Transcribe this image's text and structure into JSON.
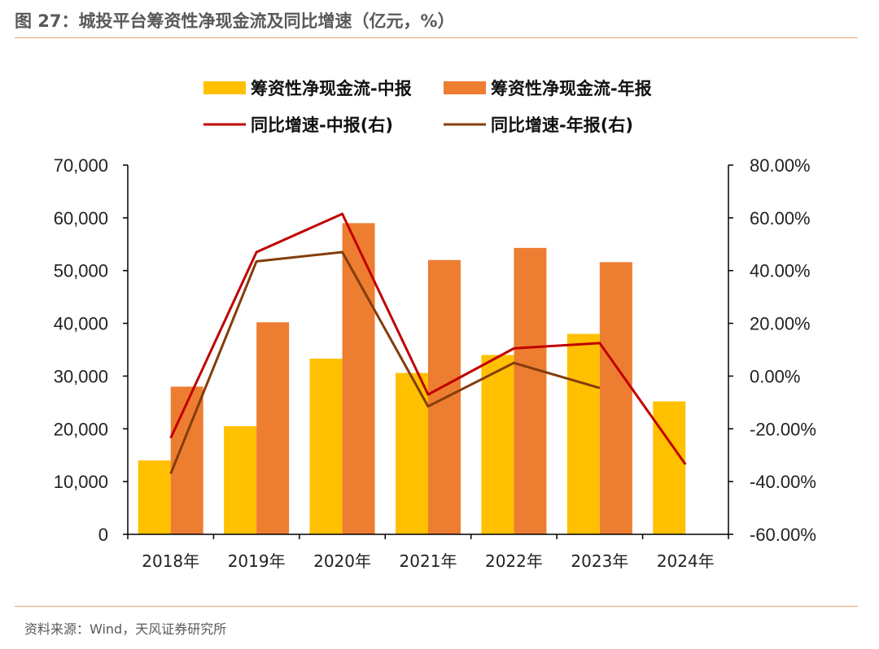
{
  "figure": {
    "title": "图 27：城投平台筹资性净现金流及同比增速（亿元，%）",
    "source": "资料来源：Wind，天风证券研究所"
  },
  "colors": {
    "bar_mid": "#ffc000",
    "bar_annual": "#ed7d31",
    "line_mid": "#c00000",
    "line_annual": "#843c0c",
    "rule": "#f0a46a"
  },
  "chart_data": {
    "type": "bar",
    "categories": [
      "2018年",
      "2019年",
      "2020年",
      "2021年",
      "2022年",
      "2023年",
      "2024年"
    ],
    "series": [
      {
        "name": "筹资性净现金流-中报",
        "type": "bar",
        "axis": "left",
        "values": [
          14000,
          20500,
          33300,
          30600,
          34000,
          38000,
          25200
        ]
      },
      {
        "name": "筹资性净现金流-年报",
        "type": "bar",
        "axis": "left",
        "values": [
          28000,
          40200,
          59000,
          52000,
          54300,
          51600,
          null
        ]
      },
      {
        "name": "同比增速-中报(右)",
        "type": "line",
        "axis": "right",
        "values": [
          -23.5,
          47.0,
          61.5,
          -7.0,
          10.5,
          12.5,
          -33.5
        ]
      },
      {
        "name": "同比增速-年报(右)",
        "type": "line",
        "axis": "right",
        "values": [
          -37.0,
          43.5,
          47.0,
          -11.5,
          5.0,
          -4.5,
          null
        ]
      }
    ],
    "left_axis": {
      "min": 0,
      "max": 70000,
      "step": 10000,
      "tick_labels": [
        "0",
        "10,000",
        "20,000",
        "30,000",
        "40,000",
        "50,000",
        "60,000",
        "70,000"
      ]
    },
    "right_axis": {
      "min": -60,
      "max": 80,
      "step": 20,
      "tick_labels": [
        "-60.00%",
        "-40.00%",
        "-20.00%",
        "0.00%",
        "20.00%",
        "40.00%",
        "60.00%",
        "80.00%"
      ]
    },
    "grid": false,
    "legend_position": "top"
  }
}
